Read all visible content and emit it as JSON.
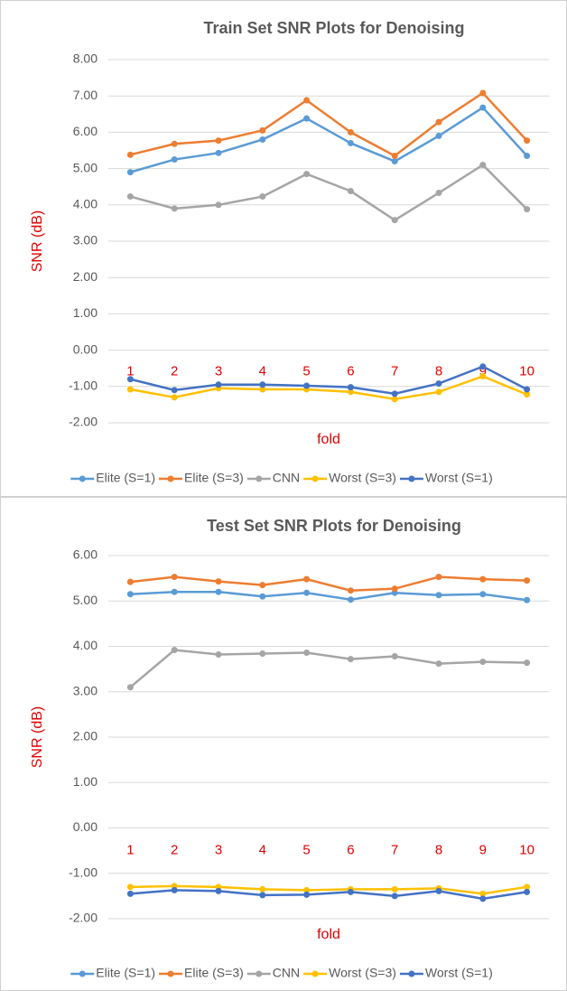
{
  "chart_data": [
    {
      "type": "line",
      "title": "Train Set SNR Plots for Denoising",
      "x_label": "fold",
      "y_label": "SNR (dB)",
      "categories": [
        "1",
        "2",
        "3",
        "4",
        "5",
        "6",
        "7",
        "8",
        "9",
        "10"
      ],
      "ylim": [
        -2,
        8
      ],
      "yticks": [
        {
          "value": 8,
          "label": "8.00"
        },
        {
          "value": 7,
          "label": "7.00"
        },
        {
          "value": 6,
          "label": "6.00"
        },
        {
          "value": 5,
          "label": "5.00"
        },
        {
          "value": 4,
          "label": "4.00"
        },
        {
          "value": 3,
          "label": "3.00"
        },
        {
          "value": 2,
          "label": "2.00"
        },
        {
          "value": 1,
          "label": "1.00"
        },
        {
          "value": 0,
          "label": "0.00"
        },
        {
          "value": -1,
          "label": "-1.00"
        },
        {
          "value": -2,
          "label": "-2.00"
        }
      ],
      "grid": true,
      "legend": "bottom",
      "series": [
        {
          "name": "Elite (S=1)",
          "color": "#5b9bd5",
          "values": [
            4.9,
            5.25,
            5.43,
            5.8,
            6.38,
            5.7,
            5.2,
            5.9,
            6.68,
            5.35
          ]
        },
        {
          "name": "Elite (S=3)",
          "color": "#ed7d31",
          "values": [
            5.38,
            5.68,
            5.77,
            6.05,
            6.88,
            6.0,
            5.35,
            6.28,
            7.08,
            5.77
          ]
        },
        {
          "name": "CNN",
          "color": "#a5a5a5",
          "values": [
            4.23,
            3.9,
            4.0,
            4.23,
            4.85,
            4.38,
            3.58,
            4.33,
            5.1,
            3.88
          ]
        },
        {
          "name": "Worst (S=3)",
          "color": "#ffc000",
          "values": [
            -1.08,
            -1.3,
            -1.05,
            -1.08,
            -1.08,
            -1.15,
            -1.35,
            -1.15,
            -0.72,
            -1.22
          ]
        },
        {
          "name": "Worst (S=1)",
          "color": "#4472c4",
          "values": [
            -0.8,
            -1.1,
            -0.95,
            -0.95,
            -0.98,
            -1.02,
            -1.2,
            -0.92,
            -0.45,
            -1.08
          ]
        }
      ]
    },
    {
      "type": "line",
      "title": "Test Set SNR Plots for Denoising",
      "x_label": "fold",
      "y_label": "SNR (dB)",
      "categories": [
        "1",
        "2",
        "3",
        "4",
        "5",
        "6",
        "7",
        "8",
        "9",
        "10"
      ],
      "ylim": [
        -2,
        6
      ],
      "yticks": [
        {
          "value": 6,
          "label": "6.00"
        },
        {
          "value": 5,
          "label": "5.00"
        },
        {
          "value": 4,
          "label": "4.00"
        },
        {
          "value": 3,
          "label": "3.00"
        },
        {
          "value": 2,
          "label": "2.00"
        },
        {
          "value": 1,
          "label": "1.00"
        },
        {
          "value": 0,
          "label": "0.00"
        },
        {
          "value": -1,
          "label": "-1.00"
        },
        {
          "value": -2,
          "label": "-2.00"
        }
      ],
      "grid": true,
      "legend": "bottom",
      "series": [
        {
          "name": "Elite (S=1)",
          "color": "#5b9bd5",
          "values": [
            5.15,
            5.2,
            5.2,
            5.1,
            5.18,
            5.03,
            5.18,
            5.13,
            5.15,
            5.02
          ]
        },
        {
          "name": "Elite (S=3)",
          "color": "#ed7d31",
          "values": [
            5.42,
            5.53,
            5.43,
            5.35,
            5.48,
            5.23,
            5.27,
            5.53,
            5.48,
            5.45
          ]
        },
        {
          "name": "CNN",
          "color": "#a5a5a5",
          "values": [
            3.1,
            3.92,
            3.82,
            3.84,
            3.86,
            3.72,
            3.78,
            3.62,
            3.66,
            3.64
          ]
        },
        {
          "name": "Worst (S=3)",
          "color": "#ffc000",
          "values": [
            -1.3,
            -1.28,
            -1.3,
            -1.35,
            -1.37,
            -1.35,
            -1.35,
            -1.33,
            -1.45,
            -1.3
          ]
        },
        {
          "name": "Worst (S=1)",
          "color": "#4472c4",
          "values": [
            -1.45,
            -1.37,
            -1.39,
            -1.48,
            -1.47,
            -1.41,
            -1.5,
            -1.39,
            -1.56,
            -1.41
          ]
        }
      ]
    }
  ]
}
